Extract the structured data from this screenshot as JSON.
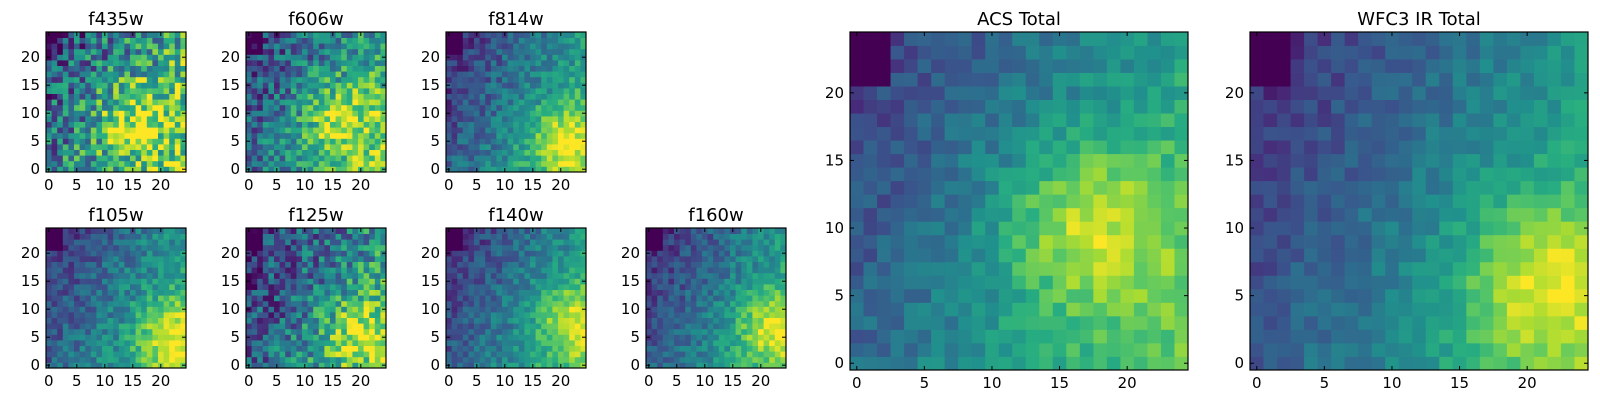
{
  "chart_data": {
    "type": "heatmap",
    "colormap": "viridis",
    "grid": false,
    "panels": [
      {
        "title": "f435w",
        "xticks": [
          "0",
          "5",
          "10",
          "15",
          "20"
        ],
        "yticks": [
          "0",
          "5",
          "10",
          "15",
          "20"
        ],
        "xlim": [
          0,
          25
        ],
        "ylim": [
          0,
          25
        ],
        "hotspot": [
          15,
          9
        ],
        "noise": 0.4,
        "base": 0.55
      },
      {
        "title": "f606w",
        "xticks": [
          "0",
          "5",
          "10",
          "15",
          "20"
        ],
        "yticks": [
          "0",
          "5",
          "10",
          "15",
          "20"
        ],
        "xlim": [
          0,
          25
        ],
        "ylim": [
          0,
          25
        ],
        "hotspot": [
          16,
          9
        ],
        "noise": 0.3,
        "base": 0.45
      },
      {
        "title": "f814w",
        "xticks": [
          "0",
          "5",
          "10",
          "15",
          "20"
        ],
        "yticks": [
          "0",
          "5",
          "10",
          "15",
          "20"
        ],
        "xlim": [
          0,
          25
        ],
        "ylim": [
          0,
          25
        ],
        "hotspot": [
          20,
          5
        ],
        "noise": 0.18,
        "base": 0.3
      },
      {
        "title": "f105w",
        "xticks": [
          "0",
          "5",
          "10",
          "15",
          "20"
        ],
        "yticks": [
          "0",
          "5",
          "10",
          "15",
          "20"
        ],
        "xlim": [
          0,
          25
        ],
        "ylim": [
          0,
          25
        ],
        "hotspot": [
          22,
          5
        ],
        "noise": 0.18,
        "base": 0.3
      },
      {
        "title": "f125w",
        "xticks": [
          "0",
          "5",
          "10",
          "15",
          "20"
        ],
        "yticks": [
          "0",
          "5",
          "10",
          "15",
          "20"
        ],
        "xlim": [
          0,
          25
        ],
        "ylim": [
          0,
          25
        ],
        "hotspot": [
          20,
          6
        ],
        "noise": 0.32,
        "base": 0.3
      },
      {
        "title": "f140w",
        "xticks": [
          "0",
          "5",
          "10",
          "15",
          "20"
        ],
        "yticks": [
          "0",
          "5",
          "10",
          "15",
          "20"
        ],
        "xlim": [
          0,
          25
        ],
        "ylim": [
          0,
          25
        ],
        "hotspot": [
          22,
          8
        ],
        "noise": 0.16,
        "base": 0.28
      },
      {
        "title": "f160w",
        "xticks": [
          "0",
          "5",
          "10",
          "15",
          "20"
        ],
        "yticks": [
          "0",
          "5",
          "10",
          "15",
          "20"
        ],
        "xlim": [
          0,
          25
        ],
        "ylim": [
          0,
          25
        ],
        "hotspot": [
          22,
          7
        ],
        "noise": 0.16,
        "base": 0.26
      },
      {
        "title": "ACS Total",
        "xticks": [
          "0",
          "5",
          "10",
          "15",
          "20"
        ],
        "yticks": [
          "0",
          "5",
          "10",
          "15",
          "20"
        ],
        "xlim": [
          0,
          25
        ],
        "ylim": [
          0,
          25
        ],
        "hotspot": [
          17,
          10
        ],
        "noise": 0.12,
        "base": 0.4
      },
      {
        "title": "WFC3 IR Total",
        "xticks": [
          "0",
          "5",
          "10",
          "15",
          "20"
        ],
        "yticks": [
          "0",
          "5",
          "10",
          "15",
          "20"
        ],
        "xlim": [
          0,
          25
        ],
        "ylim": [
          0,
          25
        ],
        "hotspot": [
          21,
          6
        ],
        "noise": 0.1,
        "base": 0.28
      }
    ]
  }
}
